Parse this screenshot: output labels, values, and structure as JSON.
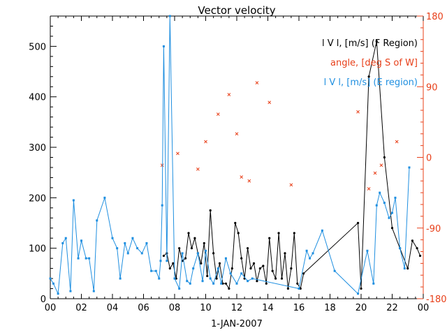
{
  "chart_data": {
    "type": "line",
    "title": "Vector velocity",
    "xlabel": "1-JAN-2007",
    "x_ticks": [
      "00",
      "02",
      "04",
      "06",
      "08",
      "10",
      "12",
      "14",
      "16",
      "18",
      "20",
      "22",
      "00"
    ],
    "xlim": [
      0,
      24
    ],
    "ylabel": "",
    "ylim": [
      0,
      560
    ],
    "y_ticks": [
      0,
      100,
      200,
      300,
      400,
      500
    ],
    "y2lim": [
      -180,
      180
    ],
    "y2_ticks": [
      -180,
      -90,
      0,
      90,
      180
    ],
    "legend_position": "top-right",
    "colors": {
      "f_region": "#000000",
      "angle": "#e8401a",
      "e_region": "#1f8fe0"
    },
    "series": [
      {
        "name": "l V l, [m/s] (F Region)",
        "axis": "left",
        "style": "line-dot",
        "x": [
          7.3,
          7.5,
          7.7,
          7.9,
          8.1,
          8.3,
          8.5,
          8.7,
          8.9,
          9.1,
          9.3,
          9.5,
          9.7,
          9.9,
          10.1,
          10.3,
          10.5,
          10.7,
          10.9,
          11.1,
          11.3,
          11.5,
          11.7,
          11.9,
          12.1,
          12.3,
          12.5,
          12.7,
          12.9,
          13.1,
          13.3,
          13.5,
          13.7,
          13.9,
          14.1,
          14.3,
          14.5,
          14.7,
          14.9,
          15.1,
          15.3,
          15.5,
          15.7,
          15.9,
          16.1,
          16.3,
          19.8,
          20.0,
          20.5,
          21.0,
          21.5,
          22.0,
          22.5,
          23.0,
          23.3,
          23.6,
          23.8
        ],
        "y": [
          85,
          90,
          60,
          70,
          40,
          100,
          75,
          80,
          130,
          100,
          120,
          90,
          70,
          110,
          45,
          175,
          90,
          40,
          70,
          30,
          30,
          20,
          60,
          150,
          130,
          80,
          40,
          100,
          60,
          70,
          35,
          60,
          65,
          30,
          120,
          55,
          40,
          130,
          40,
          90,
          20,
          60,
          130,
          30,
          20,
          50,
          150,
          20,
          440,
          510,
          280,
          140,
          100,
          60,
          115,
          100,
          85
        ]
      },
      {
        "name": "angle, [deg S of W]",
        "axis": "right",
        "style": "marker",
        "x": [
          7.2,
          8.2,
          9.5,
          10.0,
          10.8,
          11.5,
          12.0,
          12.3,
          12.8,
          13.3,
          14.1,
          15.5,
          19.8,
          20.5,
          20.9,
          21.3,
          22.3
        ],
        "y": [
          -10,
          5,
          -15,
          20,
          55,
          80,
          30,
          -25,
          -30,
          95,
          70,
          -35,
          58,
          -40,
          -20,
          -10,
          20
        ]
      },
      {
        "name": "l V l, [m/s] (E region)",
        "axis": "left",
        "style": "line-marker",
        "x": [
          0,
          0.2,
          0.5,
          0.8,
          1.0,
          1.3,
          1.5,
          1.8,
          2.0,
          2.3,
          2.5,
          2.8,
          3.0,
          3.5,
          4.0,
          4.3,
          4.5,
          4.8,
          5.0,
          5.3,
          5.6,
          5.9,
          6.2,
          6.5,
          6.8,
          7.0,
          7.1,
          7.2,
          7.3,
          7.5,
          7.7,
          8.0,
          8.3,
          8.5,
          8.8,
          9.0,
          9.2,
          9.5,
          9.8,
          10.0,
          10.3,
          10.5,
          10.8,
          11.0,
          11.3,
          11.6,
          12.0,
          12.3,
          12.7,
          13.0,
          16.0,
          16.5,
          16.7,
          16.9,
          17.5,
          18.3,
          19.8,
          20.4,
          20.8,
          21.0,
          21.2,
          21.5,
          21.8,
          22.0,
          22.2,
          22.5,
          22.8,
          23.1
        ],
        "y": [
          40,
          30,
          10,
          110,
          120,
          15,
          195,
          80,
          115,
          80,
          80,
          15,
          155,
          200,
          120,
          100,
          40,
          110,
          90,
          120,
          100,
          90,
          110,
          55,
          55,
          40,
          75,
          185,
          500,
          75,
          560,
          40,
          20,
          90,
          35,
          30,
          60,
          90,
          35,
          95,
          40,
          30,
          60,
          30,
          80,
          50,
          30,
          50,
          35,
          40,
          20,
          95,
          80,
          90,
          135,
          55,
          10,
          95,
          30,
          185,
          210,
          190,
          160,
          170,
          200,
          100,
          60,
          260
        ]
      }
    ]
  }
}
